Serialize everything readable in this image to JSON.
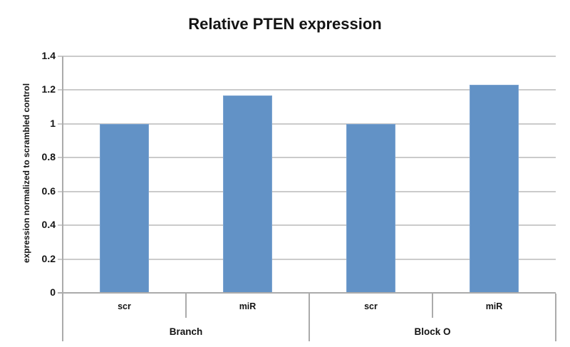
{
  "chart_data": {
    "type": "bar",
    "title": "Relative PTEN expression",
    "ylabel": "expression normalized to scrambled control",
    "xlabel": "",
    "groups": [
      {
        "label": "Branch",
        "bars": [
          {
            "category": "scr",
            "value": 1.0
          },
          {
            "category": "miR",
            "value": 1.17
          }
        ]
      },
      {
        "label": "Block O",
        "bars": [
          {
            "category": "scr",
            "value": 1.0
          },
          {
            "category": "miR",
            "value": 1.23
          }
        ]
      }
    ],
    "ylim": [
      0,
      1.4
    ],
    "ytick_step": 0.2,
    "ytick_labels": [
      "0",
      "0.2",
      "0.4",
      "0.6",
      "0.8",
      "1",
      "1.2",
      "1.4"
    ],
    "grid": true,
    "legend": false,
    "colors": {
      "bar": "#6292c6",
      "bar_border": "#7ba3d0",
      "gridline": "#cbcbcb",
      "axis": "#ababab",
      "text": "#141414"
    }
  }
}
